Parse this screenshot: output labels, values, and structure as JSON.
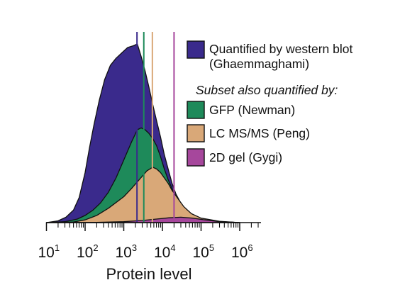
{
  "chart_data": {
    "type": "area",
    "title": "",
    "xlabel": "Protein level",
    "ylabel": "",
    "x_scale": "log10",
    "xlim": [
      10,
      3000000
    ],
    "ylim": [
      0,
      100
    ],
    "x_ticks": [
      {
        "base": "10",
        "exp": "1",
        "value": 10
      },
      {
        "base": "10",
        "exp": "2",
        "value": 100
      },
      {
        "base": "10",
        "exp": "3",
        "value": 1000
      },
      {
        "base": "10",
        "exp": "4",
        "value": 10000
      },
      {
        "base": "10",
        "exp": "5",
        "value": 100000
      },
      {
        "base": "10",
        "exp": "6",
        "value": 1000000
      }
    ],
    "legend_subtitle": "Subset also quantified by:",
    "series": [
      {
        "name": "Quantified by western blot (Ghaemmaghami)",
        "legend_lines": [
          "Quantified by western blot",
          "(Ghaemmaghami)"
        ],
        "color": "#3a2a8c",
        "median": 2200,
        "points": [
          [
            10,
            0
          ],
          [
            20,
            1
          ],
          [
            32,
            3
          ],
          [
            50,
            7
          ],
          [
            70,
            14
          ],
          [
            100,
            28
          ],
          [
            130,
            42
          ],
          [
            170,
            55
          ],
          [
            230,
            68
          ],
          [
            320,
            80
          ],
          [
            450,
            88
          ],
          [
            630,
            92
          ],
          [
            890,
            95
          ],
          [
            1260,
            98
          ],
          [
            1780,
            99
          ],
          [
            2240,
            100
          ],
          [
            2820,
            93
          ],
          [
            3550,
            85
          ],
          [
            4470,
            76
          ],
          [
            5620,
            66
          ],
          [
            7080,
            57
          ],
          [
            8910,
            48
          ],
          [
            11200,
            38
          ],
          [
            14100,
            30
          ],
          [
            17800,
            22
          ],
          [
            22400,
            16
          ],
          [
            28200,
            12
          ],
          [
            35500,
            8
          ],
          [
            44700,
            5
          ],
          [
            56200,
            3
          ],
          [
            100000,
            1.5
          ],
          [
            300000,
            0.5
          ],
          [
            1000000,
            0
          ]
        ]
      },
      {
        "name": "GFP (Newman)",
        "legend_lines": [
          "GFP (Newman)"
        ],
        "color": "#1e8a5a",
        "median": 3300,
        "points": [
          [
            10,
            0
          ],
          [
            30,
            0.5
          ],
          [
            63,
            2
          ],
          [
            100,
            4
          ],
          [
            160,
            7
          ],
          [
            250,
            11
          ],
          [
            400,
            17
          ],
          [
            630,
            25
          ],
          [
            1000,
            35
          ],
          [
            1580,
            45
          ],
          [
            2240,
            52
          ],
          [
            2820,
            53
          ],
          [
            3550,
            52
          ],
          [
            4470,
            50
          ],
          [
            5620,
            47
          ],
          [
            7080,
            43
          ],
          [
            8910,
            37
          ],
          [
            11200,
            30
          ],
          [
            14100,
            24
          ],
          [
            17800,
            19
          ],
          [
            22400,
            14
          ],
          [
            28200,
            11
          ],
          [
            35500,
            8
          ],
          [
            44700,
            6
          ],
          [
            56200,
            4
          ],
          [
            100000,
            2
          ],
          [
            300000,
            0.6
          ],
          [
            1000000,
            0
          ]
        ]
      },
      {
        "name": "LC MS/MS (Peng)",
        "legend_lines": [
          "LC MS/MS (Peng)"
        ],
        "color": "#d9a878",
        "median": 5500,
        "points": [
          [
            10,
            0
          ],
          [
            50,
            0.3
          ],
          [
            100,
            1.5
          ],
          [
            200,
            4
          ],
          [
            400,
            8
          ],
          [
            700,
            12
          ],
          [
            1000,
            14.5
          ],
          [
            1580,
            19
          ],
          [
            2510,
            24
          ],
          [
            3980,
            29
          ],
          [
            5620,
            31
          ],
          [
            7080,
            30
          ],
          [
            8910,
            28
          ],
          [
            11200,
            25
          ],
          [
            14100,
            22
          ],
          [
            17800,
            18
          ],
          [
            22400,
            15
          ],
          [
            28200,
            12
          ],
          [
            35500,
            9
          ],
          [
            44700,
            7
          ],
          [
            56200,
            5
          ],
          [
            100000,
            2.5
          ],
          [
            300000,
            0.7
          ],
          [
            1000000,
            0
          ]
        ]
      },
      {
        "name": "2D gel (Gygi)",
        "legend_lines": [
          "2D gel (Gygi)"
        ],
        "color": "#a6479c",
        "median": 20000,
        "points": [
          [
            10,
            0
          ],
          [
            200,
            0.1
          ],
          [
            1000,
            0.5
          ],
          [
            3000,
            1.2
          ],
          [
            7000,
            2
          ],
          [
            15000,
            2.7
          ],
          [
            30000,
            3
          ],
          [
            60000,
            2.5
          ],
          [
            120000,
            1.6
          ],
          [
            300000,
            0.5
          ],
          [
            1000000,
            0
          ]
        ]
      }
    ]
  }
}
